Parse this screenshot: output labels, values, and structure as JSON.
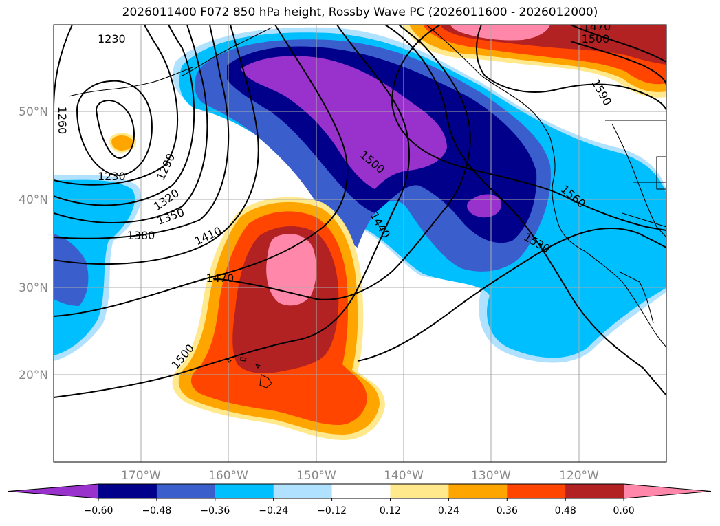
{
  "title": "2026011400 F072 850 hPa height, Rossby Wave PC (2026011600 - 2026012000)",
  "map": {
    "lat_labels": [
      "50°N",
      "40°N",
      "30°N",
      "20°N"
    ],
    "lon_labels": [
      "170°W",
      "160°W",
      "150°W",
      "140°W",
      "130°W",
      "120°W"
    ],
    "contour_labels": [
      "1230",
      "1230",
      "1260",
      "1290",
      "1320",
      "1350",
      "1380",
      "1410",
      "1440",
      "1470",
      "1470",
      "1500",
      "1500",
      "1500",
      "1530",
      "1560",
      "1590"
    ],
    "contour_line_color": "#000000",
    "coastline_color": "#000000",
    "grid_color": "#aaaaaa"
  },
  "colorbar": {
    "ticks": [
      "−0.60",
      "−0.48",
      "−0.36",
      "−0.24",
      "−0.12",
      "0.12",
      "0.24",
      "0.36",
      "0.48",
      "0.60"
    ],
    "colors": [
      "#9932cc",
      "#00008b",
      "#3a5fcd",
      "#00bfff",
      "#b0e2ff",
      "#ffffff",
      "#ffe98c",
      "#ffa500",
      "#ff4500",
      "#b22222",
      "#ff88aa"
    ]
  }
}
